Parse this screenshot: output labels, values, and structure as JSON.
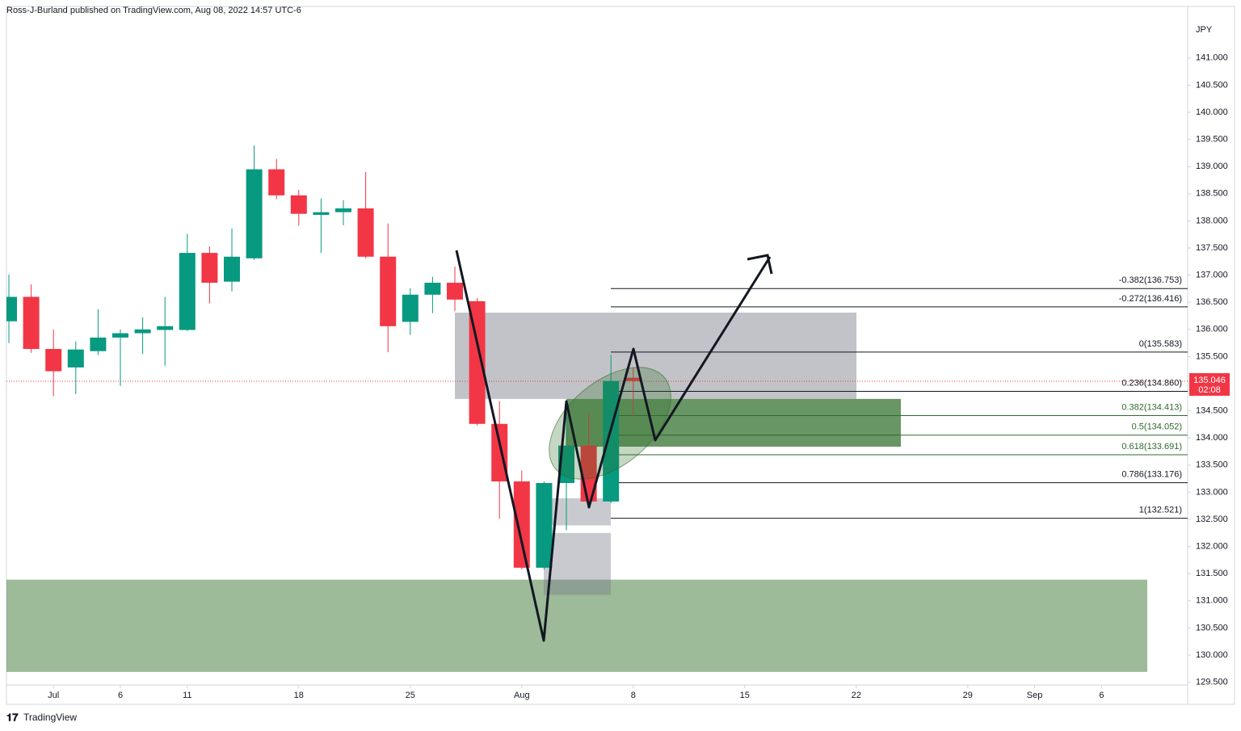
{
  "header": {
    "byline": "Ross-J-Burland published on TradingView.com, Aug 08, 2022 14:57 UTC-6"
  },
  "footer": {
    "brand": "TradingView"
  },
  "chart_data": {
    "type": "candlestick",
    "currency": "JPY",
    "up_color": "#089981",
    "down_color": "#f23645",
    "ylim": [
      129.45,
      141.95
    ],
    "yticks": [
      {
        "value": 129.5,
        "label": "129.500"
      },
      {
        "value": 130,
        "label": "130.000"
      },
      {
        "value": 130.5,
        "label": "130.500"
      },
      {
        "value": 131,
        "label": "131.000"
      },
      {
        "value": 131.5,
        "label": "131.500"
      },
      {
        "value": 132,
        "label": "132.000"
      },
      {
        "value": 132.5,
        "label": "132.500"
      },
      {
        "value": 133,
        "label": "133.000"
      },
      {
        "value": 133.5,
        "label": "133.500"
      },
      {
        "value": 134,
        "label": "134.000"
      },
      {
        "value": 134.5,
        "label": "134.500"
      },
      {
        "value": 135,
        "label": "135.000"
      },
      {
        "value": 135.5,
        "label": "135.500"
      },
      {
        "value": 136,
        "label": "136.000"
      },
      {
        "value": 136.5,
        "label": "136.500"
      },
      {
        "value": 137,
        "label": "137.000"
      },
      {
        "value": 137.5,
        "label": "137.500"
      },
      {
        "value": 138,
        "label": "138.000"
      },
      {
        "value": 138.5,
        "label": "138.500"
      },
      {
        "value": 139,
        "label": "139.000"
      },
      {
        "value": 139.5,
        "label": "139.500"
      },
      {
        "value": 140,
        "label": "140.000"
      },
      {
        "value": 140.5,
        "label": "140.500"
      },
      {
        "value": 141,
        "label": "141.000"
      }
    ],
    "xticks": [
      {
        "value": 2,
        "label": "Jul"
      },
      {
        "value": 5,
        "label": "6"
      },
      {
        "value": 8,
        "label": "11"
      },
      {
        "value": 13,
        "label": "18"
      },
      {
        "value": 18,
        "label": "25"
      },
      {
        "value": 23,
        "label": "Aug"
      },
      {
        "value": 28,
        "label": "8"
      },
      {
        "value": 33,
        "label": "15"
      },
      {
        "value": 38,
        "label": "22"
      },
      {
        "value": 43,
        "label": "29"
      },
      {
        "value": 46,
        "label": "Sep"
      },
      {
        "value": 49,
        "label": "6"
      }
    ],
    "open": [
      136.15,
      136.6,
      135.64,
      135.3,
      135.6,
      135.85,
      135.93,
      135.99,
      135.99,
      137.41,
      136.88,
      137.31,
      138.95,
      138.47,
      138.11,
      138.16,
      138.23,
      137.34,
      136.14,
      136.64,
      136.86,
      136.52,
      134.26,
      133.2,
      131.61,
      133.17,
      133.86,
      132.83,
      135.11
    ],
    "high": [
      137.01,
      136.83,
      136.0,
      135.78,
      136.37,
      136.0,
      136.22,
      136.6,
      137.76,
      137.53,
      137.86,
      139.39,
      139.14,
      138.57,
      138.41,
      138.38,
      138.9,
      137.95,
      136.76,
      136.97,
      137.16,
      136.58,
      134.68,
      133.4,
      133.2,
      134.45,
      134.45,
      135.53,
      135.3
    ],
    "low": [
      135.75,
      135.57,
      134.77,
      134.81,
      135.53,
      134.96,
      135.55,
      135.33,
      135.97,
      136.48,
      136.7,
      137.28,
      138.4,
      137.91,
      137.41,
      137.92,
      137.31,
      135.58,
      135.9,
      136.3,
      136.34,
      134.23,
      132.51,
      131.58,
      131.58,
      132.3,
      132.8,
      132.8,
      134.41
    ],
    "close": [
      136.6,
      135.64,
      135.23,
      135.63,
      135.85,
      135.93,
      136.0,
      136.06,
      137.41,
      136.86,
      137.34,
      138.95,
      138.47,
      138.13,
      138.16,
      138.23,
      137.34,
      136.06,
      136.64,
      136.86,
      136.55,
      134.26,
      133.2,
      131.61,
      133.17,
      133.86,
      132.83,
      135.05,
      135.05
    ],
    "last_price": 135.046,
    "countdown": "02:08",
    "fib_levels": [
      {
        "label": "-0.382(136.753)",
        "price": 136.753,
        "color": "#131722"
      },
      {
        "label": "-0.272(136.416)",
        "price": 136.416,
        "color": "#131722"
      },
      {
        "label": "0(135.583)",
        "price": 135.583,
        "color": "#131722"
      },
      {
        "label": "0.236(134.860)",
        "price": 134.86,
        "color": "#131722"
      },
      {
        "label": "0.382(134.413)",
        "price": 134.413,
        "color": "#2e6b2e"
      },
      {
        "label": "0.5(134.052)",
        "price": 134.052,
        "color": "#2e6b2e"
      },
      {
        "label": "0.618(133.691)",
        "price": 133.691,
        "color": "#2e6b2e"
      },
      {
        "label": "0.786(133.176)",
        "price": 133.176,
        "color": "#131722"
      },
      {
        "label": "1(132.521)",
        "price": 132.521,
        "color": "#131722"
      }
    ],
    "zones": [
      {
        "top": 136.31,
        "bottom": 134.72,
        "color": "rgba(120,123,134,0.45)"
      },
      {
        "top": 131.39,
        "bottom": 129.69,
        "color": "rgba(76,130,70,0.55)"
      },
      {
        "top": 132.89,
        "bottom": 132.39,
        "color": "rgba(120,123,134,0.4)"
      },
      {
        "top": 132.25,
        "bottom": 131.11,
        "color": "rgba(120,123,134,0.4)"
      },
      {
        "top": 134.72,
        "bottom": 133.84,
        "color": "rgba(46,110,40,0.72)"
      }
    ]
  }
}
